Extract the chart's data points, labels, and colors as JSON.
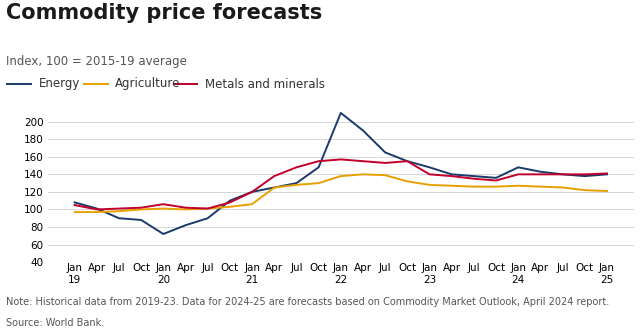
{
  "title": "Commodity price forecasts",
  "subtitle": "Index, 100 = 2015-19 average",
  "note": "Note: Historical data from 2019-23. Data for 2024-25 are forecasts based on Commodity Market Outlook, April 2024 report.",
  "source_text": "Source: World Bank.",
  "x_labels": [
    "Jan\n19",
    "Apr",
    "Jul",
    "Oct",
    "Jan\n20",
    "Apr",
    "Jul",
    "Oct",
    "Jan\n21",
    "Apr",
    "Jul",
    "Oct",
    "Jan\n22",
    "Apr",
    "Jul",
    "Oct",
    "Jan\n23",
    "Apr",
    "Jul",
    "Oct",
    "Jan\n24",
    "Apr",
    "Jul",
    "Oct",
    "Jan\n25"
  ],
  "energy": [
    108,
    101,
    90,
    88,
    72,
    82,
    90,
    110,
    120,
    125,
    130,
    148,
    210,
    190,
    165,
    155,
    148,
    140,
    138,
    136,
    148,
    143,
    140,
    138,
    140
  ],
  "agriculture": [
    97,
    97,
    98,
    100,
    101,
    100,
    101,
    103,
    106,
    125,
    128,
    130,
    138,
    140,
    139,
    132,
    128,
    127,
    126,
    126,
    127,
    126,
    125,
    122,
    121
  ],
  "metals": [
    105,
    100,
    101,
    102,
    106,
    102,
    101,
    108,
    120,
    138,
    148,
    155,
    157,
    155,
    153,
    155,
    140,
    138,
    135,
    133,
    140,
    140,
    140,
    140,
    141
  ],
  "energy_color": "#1a3a6b",
  "agriculture_color": "#e8a000",
  "metals_color": "#c0002a",
  "ylim": [
    40,
    220
  ],
  "yticks": [
    40,
    60,
    80,
    100,
    120,
    140,
    160,
    180,
    200
  ],
  "background_color": "#ffffff",
  "grid_color": "#d0d0d0",
  "title_fontsize": 15,
  "subtitle_fontsize": 8.5,
  "legend_fontsize": 8.5,
  "tick_fontsize": 7.5,
  "note_fontsize": 7.0
}
